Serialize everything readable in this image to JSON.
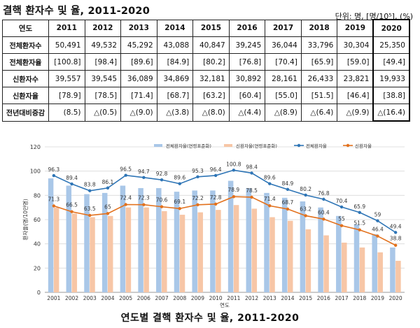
{
  "title": "결핵 환자수 및 율, 2011-2020",
  "unit": "단위: 명, [명/10⁵], (%)",
  "table": {
    "header": [
      "연도",
      "2011",
      "2012",
      "2013",
      "2014",
      "2015",
      "2016",
      "2017",
      "2018",
      "2019",
      "2020"
    ],
    "rows": [
      {
        "label": "전체환자수",
        "cells": [
          "50,491",
          "49,532",
          "45,292",
          "43,088",
          "40,847",
          "39,245",
          "36,044",
          "33,796",
          "30,304",
          "25,350"
        ]
      },
      {
        "label": "전체환자율",
        "cells": [
          "[100.8]",
          "[98.4]",
          "[89.6]",
          "[84.9]",
          "[80.2]",
          "[76.8]",
          "[70.4]",
          "[65.9]",
          "[59.0]",
          "[49.4]"
        ]
      },
      {
        "label": "신환자수",
        "cells": [
          "39,557",
          "39,545",
          "36,089",
          "34,869",
          "32,181",
          "30,892",
          "28,161",
          "26,433",
          "23,821",
          "19,933"
        ]
      },
      {
        "label": "신환자율",
        "cells": [
          "[78.9]",
          "[78.5]",
          "[71.4]",
          "[68.7]",
          "[63.2]",
          "[60.4]",
          "[55.0]",
          "[51.5]",
          "[46.4]",
          "[38.8]"
        ]
      },
      {
        "label": "전년대비증감",
        "cells": [
          "(8.5)",
          "△(0.5)",
          "△(9.0)",
          "△(3.8)",
          "△(8.0)",
          "△(4.4)",
          "△(8.9)",
          "△(6.4)",
          "△(9.9)",
          "△(16.4)"
        ]
      }
    ]
  },
  "chart_data": {
    "type": "bar",
    "xlabel": "연도",
    "ylabel": "환자율(명/10만명)",
    "ylim": [
      0,
      120
    ],
    "yticks": [
      0,
      20,
      40,
      60,
      80,
      100,
      120
    ],
    "categories": [
      "2001",
      "2002",
      "2003",
      "2004",
      "2005",
      "2006",
      "2007",
      "2008",
      "2009",
      "2010",
      "2011",
      "2012",
      "2013",
      "2014",
      "2015",
      "2016",
      "2017",
      "2018",
      "2019",
      "2020"
    ],
    "legend_position": "top",
    "series": [
      {
        "name": "전체환자율(연령표준화)",
        "kind": "bar",
        "color": "#a9c7e8",
        "values": [
          94,
          88,
          81,
          82,
          88,
          86,
          86,
          83,
          84,
          84,
          92,
          86,
          82,
          78,
          75,
          70,
          63,
          56,
          48,
          37
        ]
      },
      {
        "name": "신환자율(연령표준화)",
        "kind": "bar",
        "color": "#f7c6a6",
        "values": [
          70,
          65,
          62,
          63,
          70,
          70,
          67,
          64,
          66,
          68,
          72,
          69,
          62,
          59,
          52,
          47,
          41,
          37,
          33,
          26
        ]
      },
      {
        "name": "전체환자율",
        "kind": "line",
        "color": "#2e75b6",
        "values": [
          96.3,
          89.4,
          83.8,
          86.1,
          96.5,
          94.7,
          92.8,
          89.6,
          95.3,
          96.4,
          100.8,
          98.4,
          89.6,
          84.9,
          80.2,
          76.8,
          70.4,
          65.9,
          59,
          49.4
        ],
        "labels": [
          "96.3",
          "89.4",
          "83.8",
          "86.1",
          "96.5",
          "94.7",
          "92.8",
          "89.6",
          "95.3",
          "96.4",
          "100.8",
          "98.4",
          "89.6",
          "84.9",
          "80.2",
          "76.8",
          "70.4",
          "65.9",
          "59",
          "49.4"
        ]
      },
      {
        "name": "신환자율",
        "kind": "line",
        "color": "#e2711d",
        "values": [
          71.3,
          66.5,
          63.5,
          65,
          72.4,
          72.3,
          70.6,
          69.1,
          72.2,
          72.8,
          78.9,
          78.5,
          71.4,
          68.7,
          63.2,
          60.4,
          55,
          51.5,
          46.4,
          38.8
        ],
        "labels": [
          "71.3",
          "66.5",
          "63.5",
          "65",
          "72.4",
          "72.3",
          "70.6",
          "69.1",
          "72.2",
          "72.8",
          "78.9",
          "78.5",
          "71.4",
          "68.7",
          "63.2",
          "60.4",
          "55",
          "51.5",
          "46.4",
          "38.8"
        ]
      }
    ]
  },
  "caption": "연도별 결핵 환자수 및 율, 2011-2020"
}
